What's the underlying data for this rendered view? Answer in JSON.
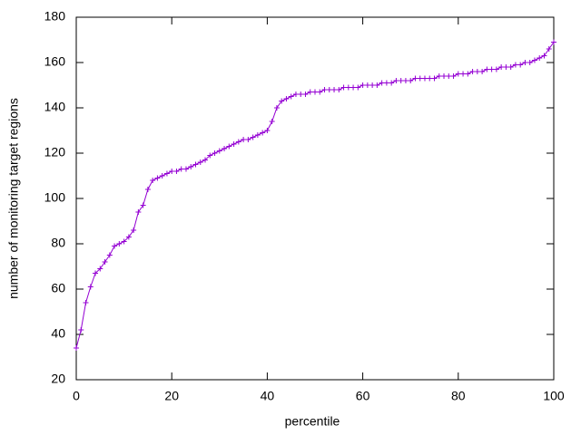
{
  "chart_data": {
    "type": "line",
    "xlabel": "percentile",
    "ylabel": "number of monitoring target regions",
    "x": [
      0,
      1,
      2,
      3,
      4,
      5,
      6,
      7,
      8,
      9,
      10,
      11,
      12,
      13,
      14,
      15,
      16,
      17,
      18,
      19,
      20,
      21,
      22,
      23,
      24,
      25,
      26,
      27,
      28,
      29,
      30,
      31,
      32,
      33,
      34,
      35,
      36,
      37,
      38,
      39,
      40,
      41,
      42,
      43,
      44,
      45,
      46,
      47,
      48,
      49,
      50,
      51,
      52,
      53,
      54,
      55,
      56,
      57,
      58,
      59,
      60,
      61,
      62,
      63,
      64,
      65,
      66,
      67,
      68,
      69,
      70,
      71,
      72,
      73,
      74,
      75,
      76,
      77,
      78,
      79,
      80,
      81,
      82,
      83,
      84,
      85,
      86,
      87,
      88,
      89,
      90,
      91,
      92,
      93,
      94,
      95,
      96,
      97,
      98,
      99,
      100
    ],
    "series": [
      {
        "color": "#9400d3",
        "values": [
          34,
          42,
          54,
          61,
          67,
          69,
          72,
          75,
          79,
          80,
          81,
          83,
          86,
          94,
          97,
          104,
          108,
          109,
          110,
          111,
          112,
          112,
          113,
          113,
          114,
          115,
          116,
          117,
          119,
          120,
          121,
          122,
          123,
          124,
          125,
          126,
          126,
          127,
          128,
          129,
          130,
          134,
          140,
          143,
          144,
          145,
          146,
          146,
          146,
          147,
          147,
          147,
          148,
          148,
          148,
          148,
          149,
          149,
          149,
          149,
          150,
          150,
          150,
          150,
          151,
          151,
          151,
          152,
          152,
          152,
          152,
          153,
          153,
          153,
          153,
          153,
          154,
          154,
          154,
          154,
          155,
          155,
          155,
          156,
          156,
          156,
          157,
          157,
          157,
          158,
          158,
          158,
          159,
          159,
          160,
          160,
          161,
          162,
          163,
          166,
          169
        ]
      }
    ],
    "xlim": [
      0,
      100
    ],
    "xticks": [
      0,
      20,
      40,
      60,
      80,
      100
    ],
    "ylim": [
      20,
      180
    ],
    "yticks": [
      20,
      40,
      60,
      80,
      100,
      120,
      140,
      160,
      180
    ]
  }
}
